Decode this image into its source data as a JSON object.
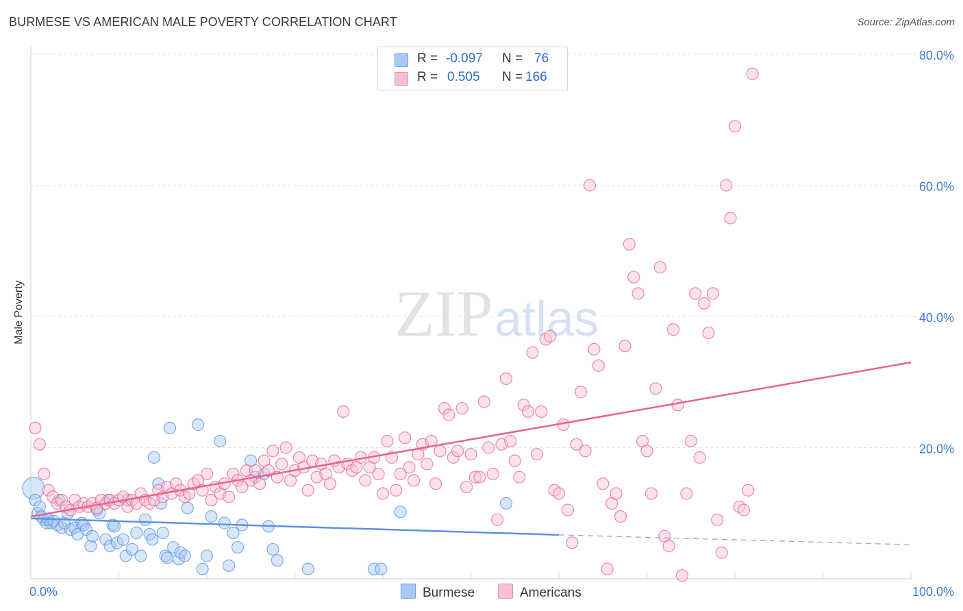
{
  "header": {
    "title": "BURMESE VS AMERICAN MALE POVERTY CORRELATION CHART",
    "source": "Source: ZipAtlas.com"
  },
  "watermark": {
    "part1": "ZIP",
    "part2": "atlas"
  },
  "legend": {
    "rows": [
      {
        "r_label": "R =",
        "r_value": "-0.097",
        "n_label": "N =",
        "n_value": "76",
        "color": "#a9c8f5",
        "border": "#6c9ee0"
      },
      {
        "r_label": "R =",
        "r_value": "0.505",
        "n_label": "N =",
        "n_value": "166",
        "color": "#f9c0d2",
        "border": "#e98fac"
      }
    ]
  },
  "bottom_legend": [
    {
      "label": "Burmese",
      "color": "#a9c8f5",
      "border": "#6c9ee0"
    },
    {
      "label": "Americans",
      "color": "#f9c0d2",
      "border": "#e98fac"
    }
  ],
  "chart_data": {
    "type": "scatter",
    "xlabel": "",
    "ylabel": "Male Poverty",
    "xlim": [
      0,
      100
    ],
    "ylim": [
      0,
      80
    ],
    "x_tick_labels": [
      "0.0%",
      "100.0%"
    ],
    "y_tick_labels": [
      "20.0%",
      "40.0%",
      "60.0%",
      "80.0%"
    ],
    "y_ticks": [
      20,
      40,
      60,
      80
    ],
    "grid": true,
    "series": [
      {
        "name": "Burmese",
        "color": "#5b92e0",
        "fill": "#a9c8f5",
        "trend": {
          "x0": 0,
          "y0": 9.2,
          "x1": 60,
          "y1": 6.7,
          "dash_to": 100,
          "dash_y": 5.2
        },
        "points": [
          [
            0.3,
            13.8
          ],
          [
            0.5,
            12.0
          ],
          [
            0.8,
            10.0
          ],
          [
            1.0,
            11.0
          ],
          [
            1.2,
            9.5
          ],
          [
            1.5,
            9.0
          ],
          [
            1.8,
            8.5
          ],
          [
            2.0,
            9.0
          ],
          [
            2.3,
            8.5
          ],
          [
            2.6,
            8.8
          ],
          [
            3.0,
            8.2
          ],
          [
            3.2,
            12.0
          ],
          [
            3.5,
            7.8
          ],
          [
            3.8,
            8.5
          ],
          [
            4.2,
            10.0
          ],
          [
            4.5,
            7.5
          ],
          [
            5.0,
            7.8
          ],
          [
            5.3,
            6.8
          ],
          [
            5.8,
            8.5
          ],
          [
            6.0,
            8.2
          ],
          [
            6.3,
            7.5
          ],
          [
            6.8,
            5.0
          ],
          [
            7.0,
            6.5
          ],
          [
            7.5,
            10.5
          ],
          [
            7.8,
            10.0
          ],
          [
            8.5,
            6.0
          ],
          [
            8.8,
            12.0
          ],
          [
            9.0,
            5.0
          ],
          [
            9.3,
            8.2
          ],
          [
            9.5,
            8.0
          ],
          [
            9.8,
            5.5
          ],
          [
            10.5,
            6.0
          ],
          [
            10.8,
            3.5
          ],
          [
            11.0,
            12.0
          ],
          [
            11.5,
            4.5
          ],
          [
            12.0,
            7.0
          ],
          [
            12.5,
            3.5
          ],
          [
            13.0,
            9.0
          ],
          [
            13.5,
            6.8
          ],
          [
            13.8,
            6.0
          ],
          [
            14.0,
            18.5
          ],
          [
            14.5,
            14.5
          ],
          [
            14.8,
            11.5
          ],
          [
            15.0,
            7.0
          ],
          [
            15.3,
            3.5
          ],
          [
            15.5,
            3.2
          ],
          [
            15.8,
            23.0
          ],
          [
            16.2,
            4.8
          ],
          [
            16.8,
            3.0
          ],
          [
            17.0,
            4.0
          ],
          [
            17.5,
            3.5
          ],
          [
            17.8,
            10.8
          ],
          [
            19.0,
            23.5
          ],
          [
            19.5,
            1.5
          ],
          [
            20.0,
            3.5
          ],
          [
            20.5,
            9.5
          ],
          [
            21.5,
            21.0
          ],
          [
            22.0,
            8.5
          ],
          [
            22.5,
            2.0
          ],
          [
            23.0,
            7.0
          ],
          [
            23.5,
            4.8
          ],
          [
            24.0,
            8.2
          ],
          [
            25.0,
            18.0
          ],
          [
            25.5,
            15.5
          ],
          [
            26.5,
            16.0
          ],
          [
            27.0,
            8.0
          ],
          [
            27.5,
            4.5
          ],
          [
            28.0,
            2.8
          ],
          [
            31.5,
            1.5
          ],
          [
            39.0,
            1.5
          ],
          [
            39.8,
            1.5
          ],
          [
            42.0,
            10.2
          ],
          [
            54.0,
            11.5
          ]
        ]
      },
      {
        "name": "Americans",
        "color": "#e8628d",
        "fill": "#f9c0d2",
        "trend": {
          "x0": 0,
          "y0": 9.5,
          "x1": 100,
          "y1": 33.0
        },
        "points": [
          [
            0.5,
            23.0
          ],
          [
            1.0,
            20.5
          ],
          [
            1.5,
            16.0
          ],
          [
            2.0,
            13.5
          ],
          [
            2.5,
            12.5
          ],
          [
            3.0,
            11.5
          ],
          [
            3.5,
            12.0
          ],
          [
            4.0,
            11.0
          ],
          [
            4.5,
            10.5
          ],
          [
            5.0,
            12.0
          ],
          [
            5.5,
            11.0
          ],
          [
            6.0,
            11.5
          ],
          [
            6.5,
            11.0
          ],
          [
            7.0,
            11.5
          ],
          [
            7.5,
            10.8
          ],
          [
            8.0,
            12.0
          ],
          [
            8.5,
            11.5
          ],
          [
            9.0,
            12.0
          ],
          [
            9.5,
            11.5
          ],
          [
            10.0,
            12.0
          ],
          [
            10.5,
            12.5
          ],
          [
            11.0,
            11.0
          ],
          [
            11.5,
            12.0
          ],
          [
            12.0,
            11.5
          ],
          [
            12.5,
            13.0
          ],
          [
            13.0,
            12.0
          ],
          [
            13.5,
            11.5
          ],
          [
            14.0,
            12.0
          ],
          [
            14.5,
            13.5
          ],
          [
            15.0,
            12.5
          ],
          [
            15.5,
            14.0
          ],
          [
            16.0,
            13.0
          ],
          [
            16.5,
            14.5
          ],
          [
            17.0,
            13.5
          ],
          [
            17.5,
            12.5
          ],
          [
            18.0,
            13.0
          ],
          [
            18.5,
            14.5
          ],
          [
            19.0,
            15.0
          ],
          [
            19.5,
            13.5
          ],
          [
            20.0,
            16.0
          ],
          [
            20.5,
            12.0
          ],
          [
            21.0,
            14.0
          ],
          [
            21.5,
            13.0
          ],
          [
            22.0,
            14.5
          ],
          [
            22.5,
            12.5
          ],
          [
            23.0,
            16.0
          ],
          [
            23.5,
            15.0
          ],
          [
            24.0,
            14.0
          ],
          [
            24.5,
            16.5
          ],
          [
            25.0,
            15.0
          ],
          [
            25.5,
            16.5
          ],
          [
            26.0,
            14.5
          ],
          [
            26.5,
            18.0
          ],
          [
            27.0,
            16.5
          ],
          [
            27.5,
            19.5
          ],
          [
            28.0,
            15.5
          ],
          [
            28.5,
            17.5
          ],
          [
            29.0,
            20.0
          ],
          [
            29.5,
            15.0
          ],
          [
            30.0,
            16.5
          ],
          [
            30.5,
            18.5
          ],
          [
            31.0,
            17.0
          ],
          [
            31.5,
            13.5
          ],
          [
            32.0,
            18.0
          ],
          [
            32.5,
            15.5
          ],
          [
            33.0,
            17.5
          ],
          [
            33.5,
            16.0
          ],
          [
            34.0,
            14.5
          ],
          [
            34.5,
            18.0
          ],
          [
            35.0,
            17.0
          ],
          [
            35.5,
            25.5
          ],
          [
            36.0,
            17.5
          ],
          [
            36.5,
            16.5
          ],
          [
            37.0,
            17.0
          ],
          [
            37.5,
            18.5
          ],
          [
            38.0,
            15.0
          ],
          [
            38.5,
            17.0
          ],
          [
            39.0,
            18.5
          ],
          [
            39.5,
            16.0
          ],
          [
            40.0,
            13.0
          ],
          [
            40.5,
            21.0
          ],
          [
            41.0,
            18.5
          ],
          [
            41.5,
            13.5
          ],
          [
            42.0,
            16.0
          ],
          [
            42.5,
            21.5
          ],
          [
            43.0,
            17.0
          ],
          [
            43.5,
            15.0
          ],
          [
            44.0,
            19.0
          ],
          [
            44.5,
            20.5
          ],
          [
            45.0,
            17.5
          ],
          [
            45.5,
            21.0
          ],
          [
            46.0,
            14.5
          ],
          [
            46.5,
            19.5
          ],
          [
            47.0,
            26.0
          ],
          [
            47.5,
            25.0
          ],
          [
            48.0,
            18.5
          ],
          [
            48.5,
            19.5
          ],
          [
            49.0,
            26.0
          ],
          [
            49.5,
            14.0
          ],
          [
            50.0,
            19.0
          ],
          [
            50.5,
            15.5
          ],
          [
            51.0,
            15.5
          ],
          [
            51.5,
            27.0
          ],
          [
            52.0,
            20.0
          ],
          [
            52.5,
            16.0
          ],
          [
            53.0,
            9.0
          ],
          [
            53.5,
            20.5
          ],
          [
            54.0,
            30.5
          ],
          [
            54.5,
            21.0
          ],
          [
            55.0,
            18.0
          ],
          [
            55.5,
            15.5
          ],
          [
            56.0,
            26.5
          ],
          [
            56.5,
            25.5
          ],
          [
            57.0,
            34.5
          ],
          [
            57.5,
            19.0
          ],
          [
            58.0,
            25.5
          ],
          [
            58.5,
            36.5
          ],
          [
            59.0,
            37.0
          ],
          [
            59.5,
            13.5
          ],
          [
            60.0,
            13.0
          ],
          [
            60.5,
            23.5
          ],
          [
            61.0,
            10.5
          ],
          [
            61.5,
            5.5
          ],
          [
            62.0,
            20.5
          ],
          [
            62.5,
            28.5
          ],
          [
            63.0,
            19.5
          ],
          [
            63.5,
            60.0
          ],
          [
            64.0,
            35.0
          ],
          [
            64.5,
            32.5
          ],
          [
            65.0,
            14.5
          ],
          [
            65.5,
            1.5
          ],
          [
            66.0,
            11.5
          ],
          [
            66.5,
            13.0
          ],
          [
            67.0,
            9.5
          ],
          [
            67.5,
            35.5
          ],
          [
            68.0,
            51.0
          ],
          [
            68.5,
            46.0
          ],
          [
            69.0,
            43.5
          ],
          [
            69.5,
            21.0
          ],
          [
            70.0,
            19.5
          ],
          [
            70.5,
            13.0
          ],
          [
            71.0,
            29.0
          ],
          [
            71.5,
            47.5
          ],
          [
            72.0,
            6.5
          ],
          [
            72.5,
            5.0
          ],
          [
            73.0,
            38.0
          ],
          [
            73.5,
            26.5
          ],
          [
            74.0,
            0.5
          ],
          [
            74.5,
            13.0
          ],
          [
            75.0,
            21.0
          ],
          [
            75.5,
            43.5
          ],
          [
            76.0,
            18.5
          ],
          [
            76.5,
            42.0
          ],
          [
            77.0,
            37.5
          ],
          [
            77.5,
            43.5
          ],
          [
            78.0,
            9.0
          ],
          [
            78.5,
            4.0
          ],
          [
            79.0,
            60.0
          ],
          [
            79.5,
            55.0
          ],
          [
            80.0,
            69.0
          ],
          [
            80.5,
            11.0
          ],
          [
            81.0,
            10.5
          ],
          [
            81.5,
            13.5
          ],
          [
            82.0,
            77.0
          ]
        ]
      }
    ]
  }
}
